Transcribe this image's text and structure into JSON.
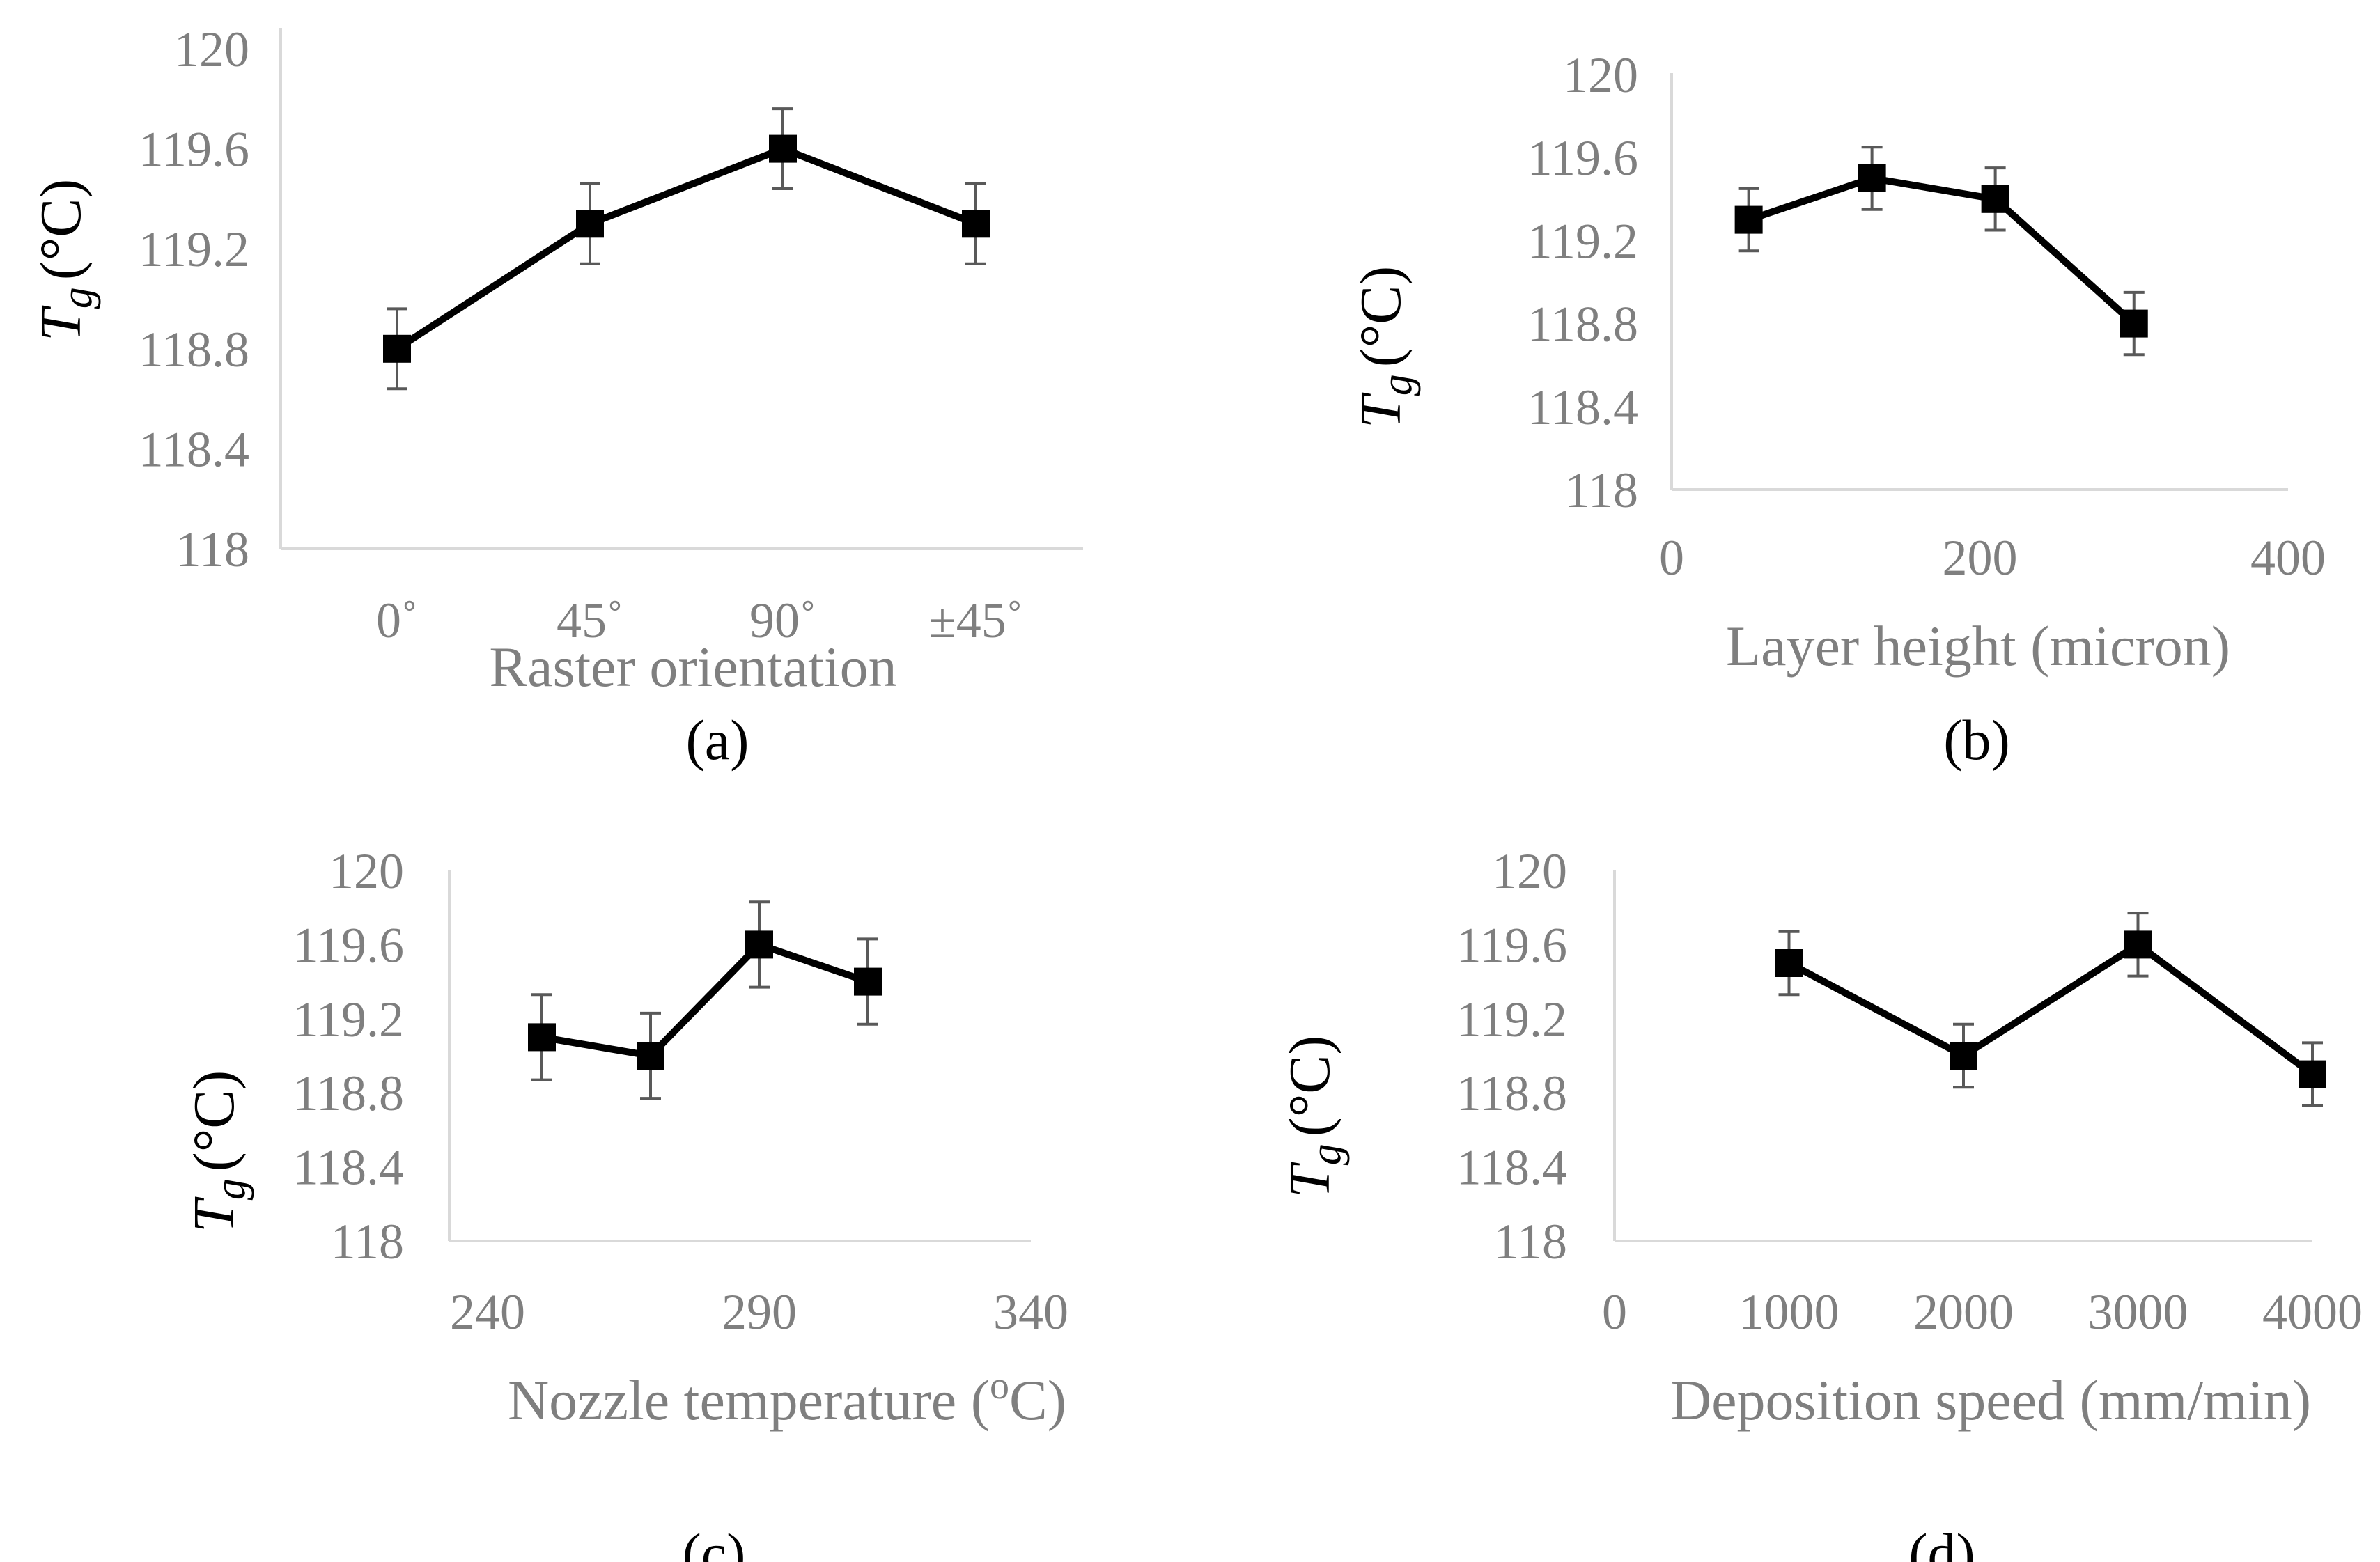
{
  "colors": {
    "series": "#000000",
    "axis": "#d9d9d9",
    "tick_text": "#7f7f7f",
    "error_bar": "#595959"
  },
  "chart_data": [
    {
      "id": "a",
      "panel_label": "(a)",
      "type": "line",
      "ylabel_symbol": "T",
      "ylabel_sub": "g",
      "ylabel_unit": "(°C)",
      "xlabel": "Raster orientation",
      "x_axis_type": "category",
      "categories": [
        "0˚",
        "45˚",
        "90˚",
        "±45˚"
      ],
      "values": [
        118.8,
        119.3,
        119.6,
        119.3
      ],
      "error": [
        0.16,
        0.16,
        0.16,
        0.16
      ],
      "ylim": [
        118,
        120
      ],
      "yticks": [
        118,
        118.4,
        118.8,
        119.2,
        119.6,
        120
      ],
      "ytick_labels": [
        "118",
        "118.4",
        "118.8",
        "119.2",
        "119.6",
        "120"
      ]
    },
    {
      "id": "b",
      "panel_label": "(b)",
      "type": "line",
      "ylabel_symbol": "T",
      "ylabel_sub": "g",
      "ylabel_unit": "(°C)",
      "xlabel": "Layer height (micron)",
      "x_axis_type": "numeric",
      "x": [
        50,
        130,
        210,
        300
      ],
      "values": [
        119.3,
        119.5,
        119.4,
        118.8
      ],
      "error": [
        0.15,
        0.15,
        0.15,
        0.15
      ],
      "xlim": [
        0,
        400
      ],
      "xticks": [
        0,
        200,
        400
      ],
      "xtick_labels": [
        "0",
        "200",
        "400"
      ],
      "ylim": [
        118,
        120
      ],
      "yticks": [
        118,
        118.4,
        118.8,
        119.2,
        119.6,
        120
      ],
      "ytick_labels": [
        "118",
        "118.4",
        "118.8",
        "119.2",
        "119.6",
        "120"
      ]
    },
    {
      "id": "c",
      "panel_label": "(c)",
      "type": "line",
      "ylabel_symbol": "T",
      "ylabel_sub": "g",
      "ylabel_unit": "(°C)",
      "xlabel_main": "Nozzle temperature (",
      "xlabel_sup": "o",
      "xlabel_tail": "C)",
      "x_axis_type": "numeric",
      "x": [
        250,
        270,
        290,
        310
      ],
      "values": [
        119.1,
        119.0,
        119.6,
        119.4
      ],
      "error": [
        0.23,
        0.23,
        0.23,
        0.23
      ],
      "xlim": [
        240,
        340
      ],
      "xticks": [
        240,
        290,
        340
      ],
      "xtick_labels": [
        "240",
        "290",
        "340"
      ],
      "ylim": [
        118,
        120
      ],
      "yticks": [
        118,
        118.4,
        118.8,
        119.2,
        119.6,
        120
      ],
      "ytick_labels": [
        "118",
        "118.4",
        "118.8",
        "119.2",
        "119.6",
        "120"
      ]
    },
    {
      "id": "d",
      "panel_label": "(d)",
      "type": "line",
      "ylabel_symbol": "T",
      "ylabel_sub": "g",
      "ylabel_unit": "(°C)",
      "xlabel": "Deposition speed (mm/min)",
      "x_axis_type": "numeric",
      "x": [
        1000,
        2000,
        3000,
        4000
      ],
      "values": [
        119.5,
        119.0,
        119.6,
        118.9
      ],
      "error": [
        0.17,
        0.17,
        0.17,
        0.17
      ],
      "xlim": [
        0,
        4000
      ],
      "xticks": [
        0,
        1000,
        2000,
        3000,
        4000
      ],
      "xtick_labels": [
        "0",
        "1000",
        "2000",
        "3000",
        "4000"
      ],
      "ylim": [
        118,
        120
      ],
      "yticks": [
        118,
        118.4,
        118.8,
        119.2,
        119.6,
        120
      ],
      "ytick_labels": [
        "118",
        "118.4",
        "118.8",
        "119.2",
        "119.6",
        "120"
      ]
    }
  ]
}
